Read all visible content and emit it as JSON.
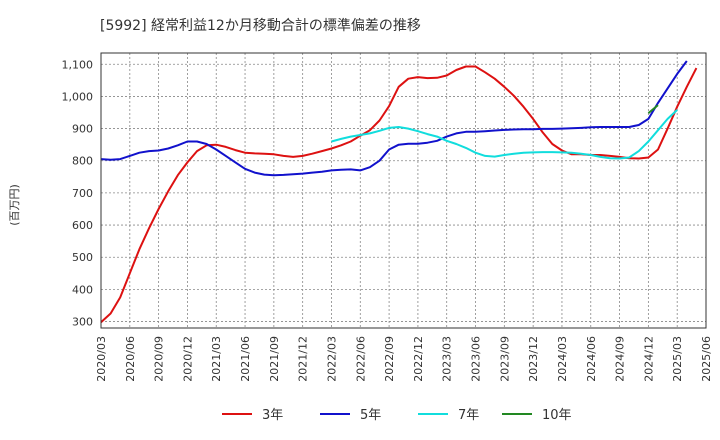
{
  "chart_data": {
    "type": "line",
    "title": "[5992]  経常利益12か月移動合計の標準偏差の推移",
    "ylabel": "(百万円)",
    "xlabel": "",
    "ylim": [
      280,
      1135
    ],
    "yticks": [
      300,
      400,
      500,
      600,
      700,
      800,
      900,
      1000,
      1100
    ],
    "ytick_labels": [
      "300",
      "400",
      "500",
      "600",
      "700",
      "800",
      "900",
      "1,000",
      "1,100"
    ],
    "xticks": [
      "2020/03",
      "2020/06",
      "2020/09",
      "2020/12",
      "2021/03",
      "2021/06",
      "2021/09",
      "2021/12",
      "2022/03",
      "2022/06",
      "2022/09",
      "2022/12",
      "2023/03",
      "2023/06",
      "2023/09",
      "2023/12",
      "2024/03",
      "2024/06",
      "2024/09",
      "2024/12",
      "2025/03",
      "2025/06"
    ],
    "grid": true,
    "legend_position": "bottom",
    "series": [
      {
        "name": "3年",
        "color": "#dd1111",
        "start": "2020/03",
        "values": [
          298,
          325,
          375,
          450,
          525,
          590,
          650,
          705,
          755,
          795,
          830,
          848,
          850,
          843,
          833,
          825,
          823,
          822,
          820,
          815,
          812,
          815,
          822,
          830,
          838,
          848,
          860,
          878,
          895,
          925,
          970,
          1030,
          1055,
          1060,
          1057,
          1058,
          1065,
          1082,
          1093,
          1093,
          1075,
          1055,
          1030,
          1002,
          968,
          930,
          888,
          852,
          832,
          820,
          820,
          818,
          818,
          815,
          812,
          808,
          807,
          810,
          835,
          900,
          968,
          1030,
          1088
        ]
      },
      {
        "name": "5年",
        "color": "#1111cc",
        "start": "2020/03",
        "values": [
          805,
          803,
          805,
          815,
          825,
          830,
          832,
          838,
          848,
          860,
          860,
          852,
          835,
          815,
          795,
          775,
          763,
          757,
          755,
          756,
          758,
          760,
          763,
          766,
          770,
          772,
          773,
          770,
          780,
          800,
          835,
          850,
          853,
          853,
          856,
          862,
          875,
          885,
          890,
          890,
          892,
          894,
          896,
          897,
          898,
          898,
          899,
          899,
          900,
          901,
          902,
          904,
          905,
          905,
          905,
          905,
          911,
          930,
          980,
          1025,
          1070,
          1110
        ]
      },
      {
        "name": "7年",
        "color": "#11dddd",
        "start": "2022/03",
        "values": [
          860,
          868,
          875,
          880,
          885,
          893,
          902,
          905,
          900,
          892,
          883,
          875,
          862,
          852,
          840,
          825,
          815,
          813,
          818,
          822,
          825,
          826,
          827,
          827,
          826,
          825,
          822,
          818,
          812,
          808,
          807,
          810,
          830,
          860,
          895,
          930,
          958
        ]
      },
      {
        "name": "10年",
        "color": "#228822",
        "start": "2024/12",
        "values": [
          948,
          973
        ]
      }
    ]
  }
}
